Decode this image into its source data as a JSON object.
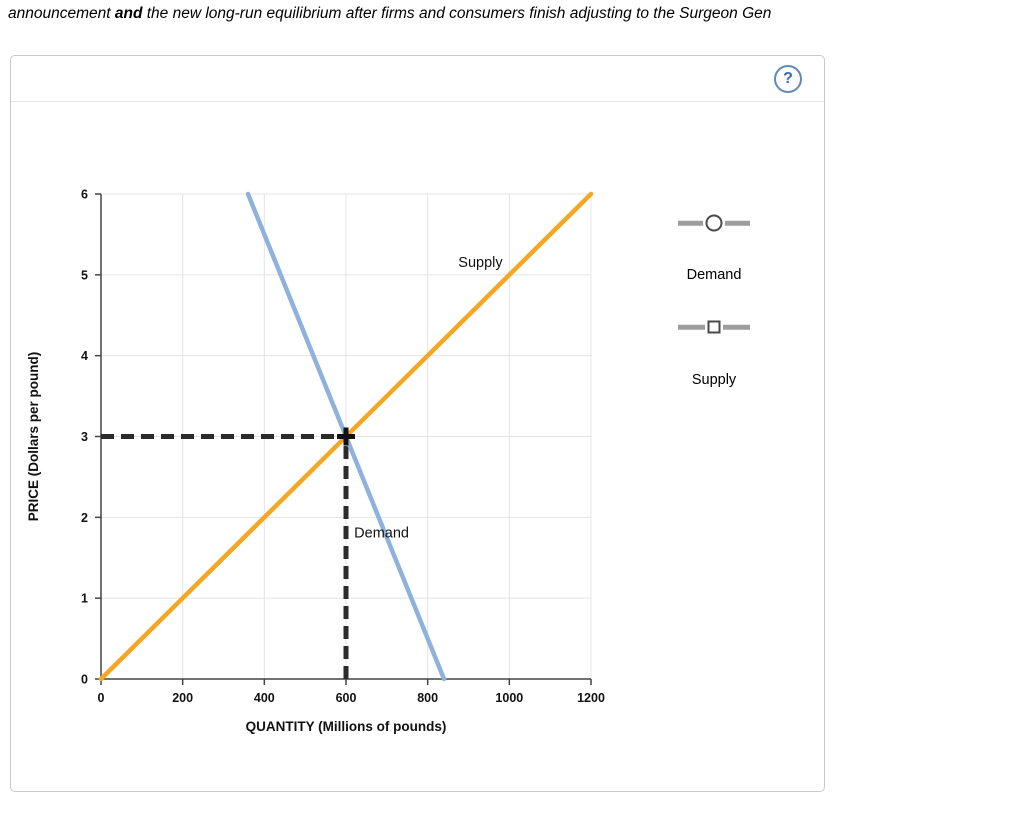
{
  "header": {
    "text_prefix": "announcement ",
    "text_bold": "and",
    "text_suffix": " the new long-run equilibrium after firms and consumers finish adjusting to the Surgeon Gen"
  },
  "panel": {
    "help_icon": "?"
  },
  "controls": {
    "demand_label": "Demand",
    "supply_label": "Supply"
  },
  "chart_data": {
    "type": "line",
    "title": "",
    "xlabel": "QUANTITY (Millions of pounds)",
    "ylabel": "PRICE (Dollars per pound)",
    "xlim": [
      0,
      1200
    ],
    "ylim": [
      0,
      6
    ],
    "xticks": [
      0,
      200,
      400,
      600,
      800,
      1000,
      1200
    ],
    "yticks": [
      0,
      1,
      2,
      3,
      4,
      5,
      6
    ],
    "grid": true,
    "legend_position": "right",
    "series": [
      {
        "name": "Supply",
        "color": "#F5A623",
        "points": [
          [
            0,
            0
          ],
          [
            1200,
            6
          ]
        ],
        "label_at": [
          875,
          5.1
        ]
      },
      {
        "name": "Demand",
        "color": "#8FB2DC",
        "points": [
          [
            360,
            6
          ],
          [
            840,
            0
          ]
        ],
        "label_at": [
          620,
          1.75
        ]
      }
    ],
    "equilibrium": {
      "quantity": 600,
      "price": 3,
      "dashed_color": "#2B2B2B",
      "marker": "plus"
    }
  }
}
